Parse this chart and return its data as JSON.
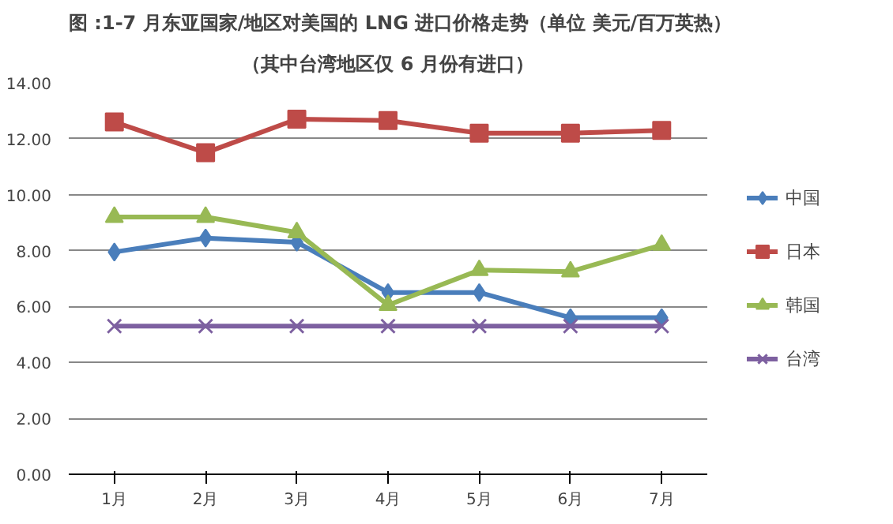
{
  "chart_data": {
    "type": "line",
    "title": "图 :1-7 月东亚国家/地区对美国的 LNG 进口价格走势（单位 美元/百万英热）",
    "subtitle": "（其中台湾地区仅 6 月份有进口）",
    "categories": [
      "1月",
      "2月",
      "3月",
      "4月",
      "5月",
      "6月",
      "7月"
    ],
    "series": [
      {
        "name": "中国",
        "color": "#4a7ebb",
        "marker": "diamond",
        "values": [
          7.95,
          8.45,
          8.3,
          6.5,
          6.5,
          5.6,
          5.6
        ]
      },
      {
        "name": "日本",
        "color": "#be4b48",
        "marker": "square",
        "values": [
          12.6,
          11.5,
          12.7,
          12.65,
          12.2,
          12.2,
          12.3
        ]
      },
      {
        "name": "韩国",
        "color": "#98b954",
        "marker": "triangle",
        "values": [
          9.2,
          9.2,
          8.65,
          6.05,
          7.3,
          7.25,
          8.2
        ]
      },
      {
        "name": "台湾",
        "color": "#7d60a0",
        "marker": "cross",
        "values": [
          5.3,
          5.3,
          5.3,
          5.3,
          5.3,
          5.3,
          5.3
        ]
      }
    ],
    "ylim": [
      0,
      14
    ],
    "yticks": [
      {
        "value": 0,
        "label": "0.00"
      },
      {
        "value": 2,
        "label": "2.00"
      },
      {
        "value": 4,
        "label": "4.00"
      },
      {
        "value": 6,
        "label": "6.00"
      },
      {
        "value": 8,
        "label": "8.00"
      },
      {
        "value": 10,
        "label": "10.00"
      },
      {
        "value": 12,
        "label": "12.00"
      },
      {
        "value": 14,
        "label": "14.00"
      }
    ],
    "grid": "y",
    "legend": "right",
    "line_style": "solid"
  }
}
